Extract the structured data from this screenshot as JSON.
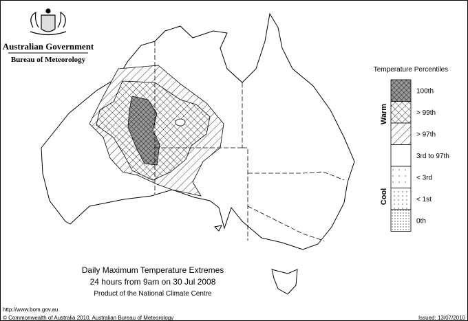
{
  "header": {
    "government": "Australian Government",
    "bureau": "Bureau of Meteorology"
  },
  "legend": {
    "title": "Temperature Percentiles",
    "groups": [
      "Warm",
      "Cool"
    ],
    "classes": [
      "100th",
      "> 99th",
      "> 97th",
      "3rd to 97th",
      "< 3rd",
      "< 1st",
      "0th"
    ]
  },
  "caption": {
    "title": "Daily Maximum Temperature Extremes",
    "period": "24 hours from 9am on 30 Jul 2008",
    "product": "Product of the National Climate Centre"
  },
  "footer": {
    "url": "http://www.bom.gov.au",
    "copyright": "© Commonwealth of Australia 2010, Australian Bureau of Meteorology",
    "issued": "Issued: 13/07/2010"
  }
}
